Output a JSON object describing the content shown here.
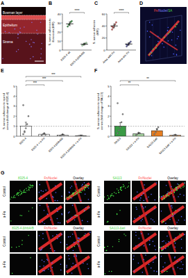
{
  "panel_labels": [
    "A",
    "B",
    "C",
    "D",
    "E",
    "F",
    "G"
  ],
  "image_panels": {
    "A": {
      "labels": [
        "Bowman layer",
        "Epithelium",
        "Stroma"
      ]
    },
    "D": {
      "legend": [
        {
          "text": "Fn/",
          "color": "#ff4a4a"
        },
        {
          "text": "Nuclei/",
          "color": "#7a86ff"
        },
        {
          "text": "SA",
          "color": "#4cd64c"
        }
      ]
    },
    "G": {
      "column_headers": [
        "Fn/Nuclei",
        "Overlay"
      ],
      "groups": [
        {
          "strain": "8325-4",
          "rows": [
            "Control",
            "α-Fn"
          ]
        },
        {
          "strain": "8325-4 ΔfnbA/B",
          "rows": [
            "Control",
            "α-Fn"
          ]
        },
        {
          "strain": "SA113",
          "rows": [
            "Control",
            "α-Fn"
          ]
        },
        {
          "strain": "SA113-Δatl",
          "rows": [
            "Control",
            "α-Fn"
          ]
        }
      ]
    }
  },
  "chart_data": [
    {
      "type": "dot",
      "y_label": [
        "S. aureus adhesion to",
        "fibronectin (MFI)"
      ],
      "categories": [
        "8325-4 wt",
        "8325-4 ΔfnbA/B"
      ],
      "values": [
        29,
        6.5
      ],
      "errors": [
        2,
        1
      ],
      "points": [
        [
          26,
          28,
          29,
          31,
          32
        ],
        [
          5,
          6,
          7,
          7,
          8
        ]
      ],
      "colors": [
        "#3a9a45",
        "#9fd6a0"
      ],
      "ylim": [
        0,
        40
      ],
      "yticks": [
        0,
        10,
        20,
        30,
        40
      ],
      "significance": [
        {
          "text": "****",
          "groups": [
            0,
            1
          ]
        }
      ]
    },
    {
      "type": "dot",
      "y_label": [
        "S. aureus adhesion",
        "(MFI)"
      ],
      "categories": [
        "Area with Fn",
        "Area w/o Fn"
      ],
      "values": [
        40,
        10
      ],
      "errors": [
        3,
        2
      ],
      "points": [
        [
          34,
          37,
          40,
          43,
          46,
          39
        ],
        [
          6,
          8,
          10,
          12,
          14,
          9
        ]
      ],
      "colors": [
        "#d9534f",
        "#5b5ea6"
      ],
      "ylim": [
        0,
        60
      ],
      "yticks": [
        0,
        20,
        40,
        60
      ],
      "significance": [
        {
          "text": "****",
          "groups": [
            0,
            1
          ]
        }
      ]
    },
    {
      "type": "bar",
      "y_label": [
        "S. aureus adhesion to injured",
        "cornea (fold change of 8325-4)"
      ],
      "categories": [
        "8325-4",
        "8325-4 + α-Fn",
        "8325-4 ΔfnbA/B",
        "8325-4 ΔfnbA/B + α-Fn"
      ],
      "values": [
        1,
        0.2,
        0.12,
        0.06
      ],
      "errors": [
        0.4,
        0.06,
        0.04,
        0.02
      ],
      "points": [
        [
          0.2,
          0.5,
          0.8,
          1.2,
          2.0,
          3.1,
          0.4
        ],
        [
          0.1,
          0.2,
          0.3,
          0.15
        ],
        [
          0.05,
          0.1,
          0.2,
          0.12
        ],
        [
          0.02,
          0.05,
          0.08,
          0.06
        ]
      ],
      "colors": [
        "#ffffff",
        "#ffffff",
        "#ffffff",
        "#ffffff"
      ],
      "ylim": [
        0,
        5
      ],
      "yticks": [
        0,
        1,
        2,
        3,
        4,
        5
      ],
      "reference_line": 1,
      "significance": [
        {
          "text": "***",
          "groups": [
            0,
            1
          ]
        },
        {
          "text": "***",
          "groups": [
            0,
            2
          ]
        },
        {
          "text": "***",
          "groups": [
            0,
            3
          ]
        }
      ]
    },
    {
      "type": "bar",
      "y_label": [
        "S. aureus adhesion to injured",
        "cornea (fold change of SA113)"
      ],
      "categories": [
        "SA113",
        "SA113 + α-Fn",
        "SA113 Δatl",
        "SA113 Δatl + α-Fn"
      ],
      "values": [
        1,
        0.25,
        0.55,
        0.1
      ],
      "errors": [
        0.35,
        0.08,
        0.2,
        0.04
      ],
      "points": [
        [
          0.3,
          0.6,
          0.9,
          1.4,
          2.2,
          3.3
        ],
        [
          0.1,
          0.2,
          0.35,
          0.3
        ],
        [
          0.2,
          0.4,
          0.7,
          0.9
        ],
        [
          0.05,
          0.1,
          0.15,
          0.08
        ]
      ],
      "colors": [
        "#3a9a45",
        "#a8d5a2",
        "#e67e22",
        "#f5c08a"
      ],
      "ylim": [
        0,
        5
      ],
      "yticks": [
        0,
        1,
        2,
        3,
        4,
        5
      ],
      "reference_line": 1,
      "significance": [
        {
          "text": "**",
          "groups": [
            0,
            1
          ]
        },
        {
          "text": "**",
          "groups": [
            0,
            3
          ]
        }
      ]
    }
  ]
}
